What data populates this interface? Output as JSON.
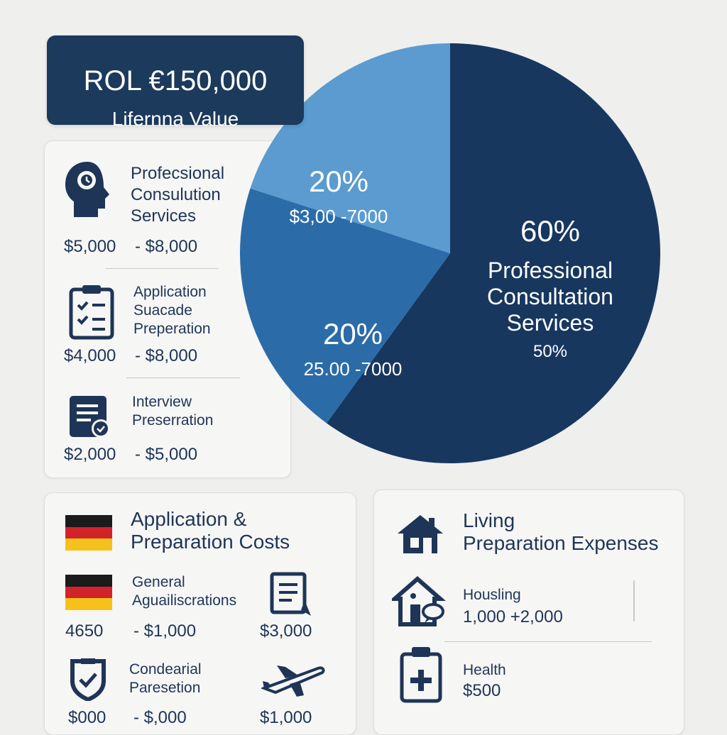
{
  "roi": {
    "title": "ROL €150,000",
    "subtitle": "Lifernna Value"
  },
  "services": [
    {
      "label_lines": [
        "Profecsional",
        "Consulution",
        "Services"
      ],
      "range_low": "$5,000",
      "range_high": "- $8,000",
      "icon": "consultant-head-icon"
    },
    {
      "label_lines": [
        "Application",
        "Suacade",
        "Preperation"
      ],
      "range_low": "$4,000",
      "range_high": "- $8,000",
      "icon": "checklist-icon"
    },
    {
      "label_lines": [
        "Interview",
        "Preserration"
      ],
      "range_low": "$2,000",
      "range_high": "- $5,000",
      "icon": "document-icon"
    }
  ],
  "chart_data": {
    "type": "pie",
    "slices": [
      {
        "pct_label": "60%",
        "label": [
          "Professional",
          "Consultation",
          "Services"
        ],
        "sublabel": "50%",
        "value": 60,
        "color": "#17375f"
      },
      {
        "pct_label": "20%",
        "label": [],
        "sublabel": "25.00 -7000",
        "value": 20,
        "color": "#2b6ca8"
      },
      {
        "pct_label": "20%",
        "label": [],
        "sublabel": "$3,00 -7000",
        "value": 20,
        "color": "#5b9bd0"
      }
    ]
  },
  "application_costs": {
    "title_lines": [
      "Application &",
      "Preparation Costs"
    ],
    "items": [
      {
        "label_lines": [
          "General",
          "Aguailiscrations"
        ],
        "low": "4650",
        "high": "- $1,000",
        "right_value": "$3,000",
        "icon": "germany-flag-icon",
        "right_icon": "document-icon"
      },
      {
        "label_lines": [
          "Condearial",
          "Paresetion"
        ],
        "low": "$000",
        "high": "- $,000",
        "right_value": "$1,000",
        "icon": "shield-check-icon",
        "right_icon": "airplane-icon"
      }
    ]
  },
  "living_expenses": {
    "title_lines": [
      "Living",
      "Preparation Expenses"
    ],
    "items": [
      {
        "label": "Housling",
        "value": "1,000 +2,000",
        "icon": "house-chat-icon"
      },
      {
        "label": "Health",
        "value": "$500",
        "icon": "medical-kit-icon"
      }
    ]
  }
}
